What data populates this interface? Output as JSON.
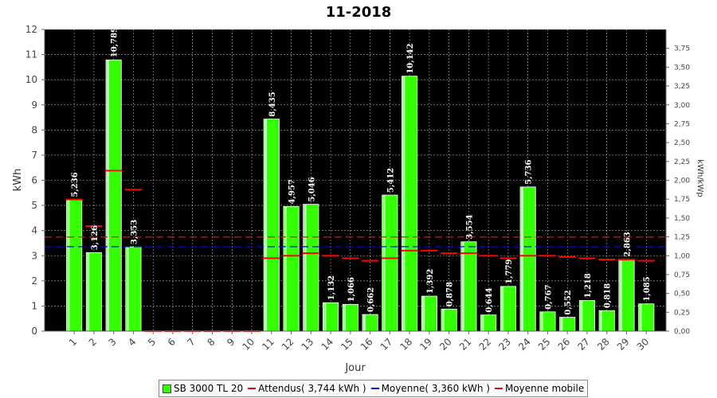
{
  "chart_data": {
    "type": "bar",
    "title": "11-2018",
    "xlabel": "Jour",
    "ylabel": "kWh",
    "y2label": "kWh/kWp",
    "ylim": [
      0,
      12
    ],
    "y2lim": [
      0,
      4.0
    ],
    "yticks": [
      0,
      1,
      2,
      3,
      4,
      5,
      6,
      7,
      8,
      9,
      10,
      11,
      12
    ],
    "y2ticks": [
      "0,00",
      "0,25",
      "0,50",
      "0,75",
      "1,00",
      "1,25",
      "1,50",
      "1,75",
      "2,00",
      "2,25",
      "2,50",
      "2,75",
      "3,00",
      "3,25",
      "3,50",
      "3,75"
    ],
    "grid": true,
    "legend_position": "bottom",
    "categories": [
      "1",
      "2",
      "3",
      "4",
      "5",
      "6",
      "7",
      "8",
      "9",
      "10",
      "11",
      "12",
      "13",
      "14",
      "15",
      "16",
      "17",
      "18",
      "19",
      "20",
      "21",
      "22",
      "23",
      "24",
      "25",
      "26",
      "27",
      "28",
      "29",
      "30"
    ],
    "series": [
      {
        "name": "SB 3000 TL 20",
        "values": [
          5.236,
          3.126,
          10.789,
          3.353,
          0,
          0,
          0,
          0,
          0,
          0,
          8.435,
          4.957,
          5.046,
          1.132,
          1.066,
          0.662,
          5.412,
          10.142,
          1.392,
          0.878,
          3.554,
          0.644,
          1.779,
          5.736,
          0.767,
          0.552,
          1.218,
          0.818,
          2.863,
          1.085
        ],
        "labels": [
          "5,236",
          "3,126",
          "10,789",
          "3,353",
          "",
          "",
          "",
          "",
          "",
          "",
          "8,435",
          "4,957",
          "5,046",
          "1,132",
          "1,066",
          "0,662",
          "5,412",
          "10,142",
          "1,392",
          "0,878",
          "3,554",
          "0,644",
          "1,779",
          "5,736",
          "0,767",
          "0,552",
          "1,218",
          "0,818",
          "2,863",
          "1,085"
        ],
        "color": "#33ff00"
      },
      {
        "name": "Attendus( 3,744 kWh )",
        "value": 3.744,
        "color": "#ff0000"
      },
      {
        "name": "Moyenne( 3,360 kWh )",
        "value": 3.36,
        "color": "#0000ff"
      },
      {
        "name": "Moyenne mobile",
        "values": [
          5.236,
          4.181,
          6.384,
          5.626,
          0,
          0,
          0,
          0,
          0,
          0,
          2.9,
          3.0,
          3.1,
          3.0,
          2.9,
          2.8,
          2.9,
          3.2,
          3.2,
          3.1,
          3.1,
          3.0,
          2.9,
          3.0,
          3.0,
          2.95,
          2.9,
          2.85,
          2.85,
          2.8
        ],
        "color": "#ff0000"
      }
    ]
  },
  "colors": {
    "plot_background": "#000000",
    "grid": "#ffffff",
    "bar": "#33ff00"
  }
}
